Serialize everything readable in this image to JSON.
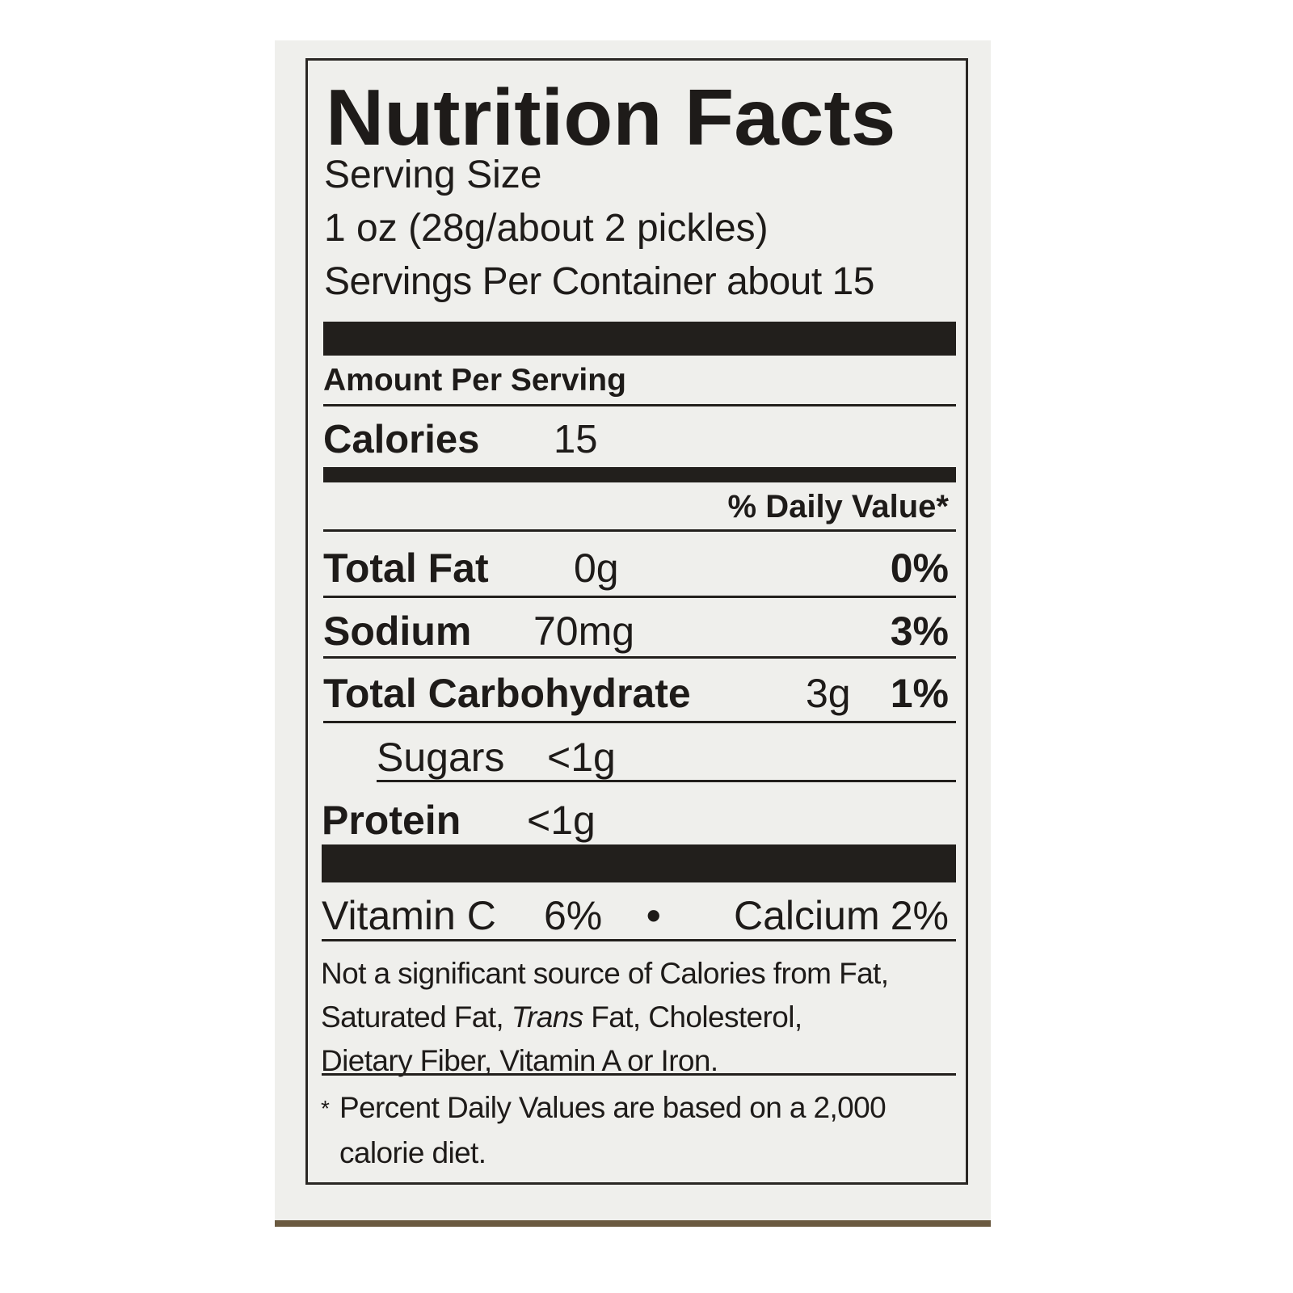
{
  "title": "Nutrition Facts",
  "serving_size_label": "Serving Size",
  "serving_size_value": "1 oz (28g/about 2 pickles)",
  "servings_per_container": "Servings Per Container about 15",
  "amount_per_serving": "Amount Per Serving",
  "calories": {
    "label": "Calories",
    "value": "15"
  },
  "daily_value_header": "% Daily Value*",
  "nutrients": [
    {
      "label": "Total Fat",
      "amount": "0g",
      "dv": "0%"
    },
    {
      "label": "Sodium",
      "amount": "70mg",
      "dv": "3%"
    },
    {
      "label": "Total Carbohydrate",
      "amount": "3g",
      "dv": "1%"
    },
    {
      "label": "Sugars",
      "amount": "<1g",
      "dv": ""
    },
    {
      "label": "Protein",
      "amount": "<1g",
      "dv": ""
    }
  ],
  "vitamins": [
    {
      "label": "Vitamin C",
      "value": "6%"
    },
    {
      "label": "Calcium",
      "value": "2%"
    }
  ],
  "separator": "•",
  "footnote": {
    "line1": "Not a significant source of Calories from Fat,",
    "line2_a": "Saturated Fat, ",
    "line2_italic": "Trans",
    "line2_b": " Fat, Cholesterol,",
    "line3": "Dietary Fiber, Vitamin A or Iron."
  },
  "daily_value_note": {
    "asterisk": "*",
    "line1": "Percent Daily Values are based on a 2,000",
    "line2": "calorie diet."
  }
}
